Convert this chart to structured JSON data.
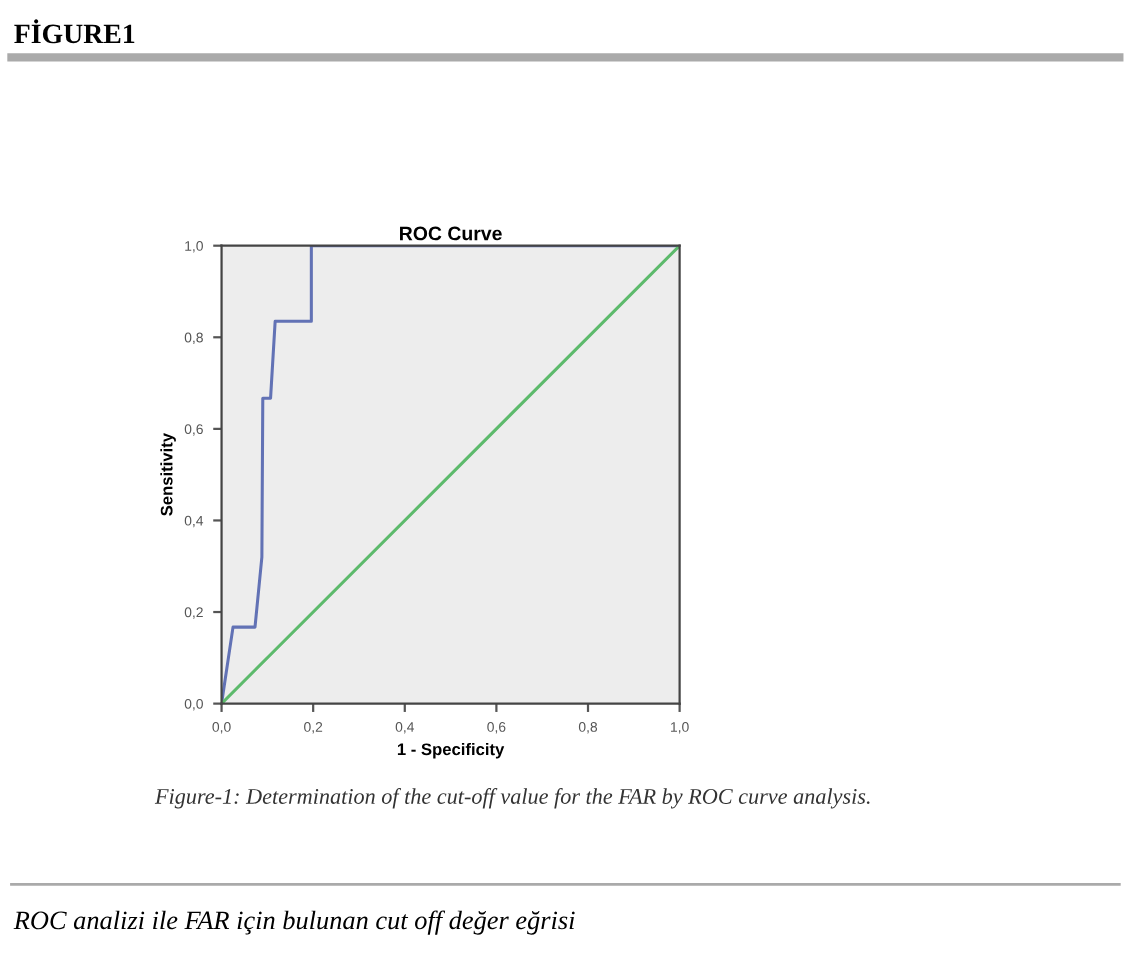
{
  "chart_data": {
    "type": "line",
    "title": "ROC Curve",
    "xlabel": "1 - Specificity",
    "ylabel": "Sensitivity",
    "series": [
      {
        "color": "#6272b5",
        "x": [
          0,
          0.025,
          0.073,
          0.088,
          0.09,
          0.107,
          0.117,
          0.196,
          0.196,
          1.0
        ],
        "values": [
          0,
          0.167,
          0.167,
          0.32,
          0.667,
          0.667,
          0.835,
          0.835,
          1.0,
          1.0
        ]
      },
      {
        "color": "#5dba6c",
        "x": [
          0,
          1
        ],
        "values": [
          0,
          1
        ]
      }
    ],
    "xlim": [
      0,
      1
    ],
    "ylim": [
      0,
      1
    ],
    "xticks": [
      {
        "value": 0,
        "label": "0,0"
      },
      {
        "value": 0.2,
        "label": "0,2"
      },
      {
        "value": 0.4,
        "label": "0,4"
      },
      {
        "value": 0.6,
        "label": "0,6"
      },
      {
        "value": 0.8,
        "label": "0,8"
      },
      {
        "value": 1,
        "label": "1,0"
      }
    ],
    "yticks": [
      {
        "value": 0,
        "label": "0,0"
      },
      {
        "value": 0.2,
        "label": "0,2"
      },
      {
        "value": 0.4,
        "label": "0,4"
      },
      {
        "value": 0.6,
        "label": "0,6"
      },
      {
        "value": 0.8,
        "label": "0,8"
      },
      {
        "value": 1,
        "label": "1,0"
      }
    ],
    "grid": false,
    "marker": "none",
    "line_style": "solid",
    "annotations": [
      "FİGURE1",
      "Figure-1: Determination of the cut-off value for the FAR by ROC curve analysis.",
      "ROC analizi ile FAR için bulunan cut off değer eğrisi"
    ]
  }
}
